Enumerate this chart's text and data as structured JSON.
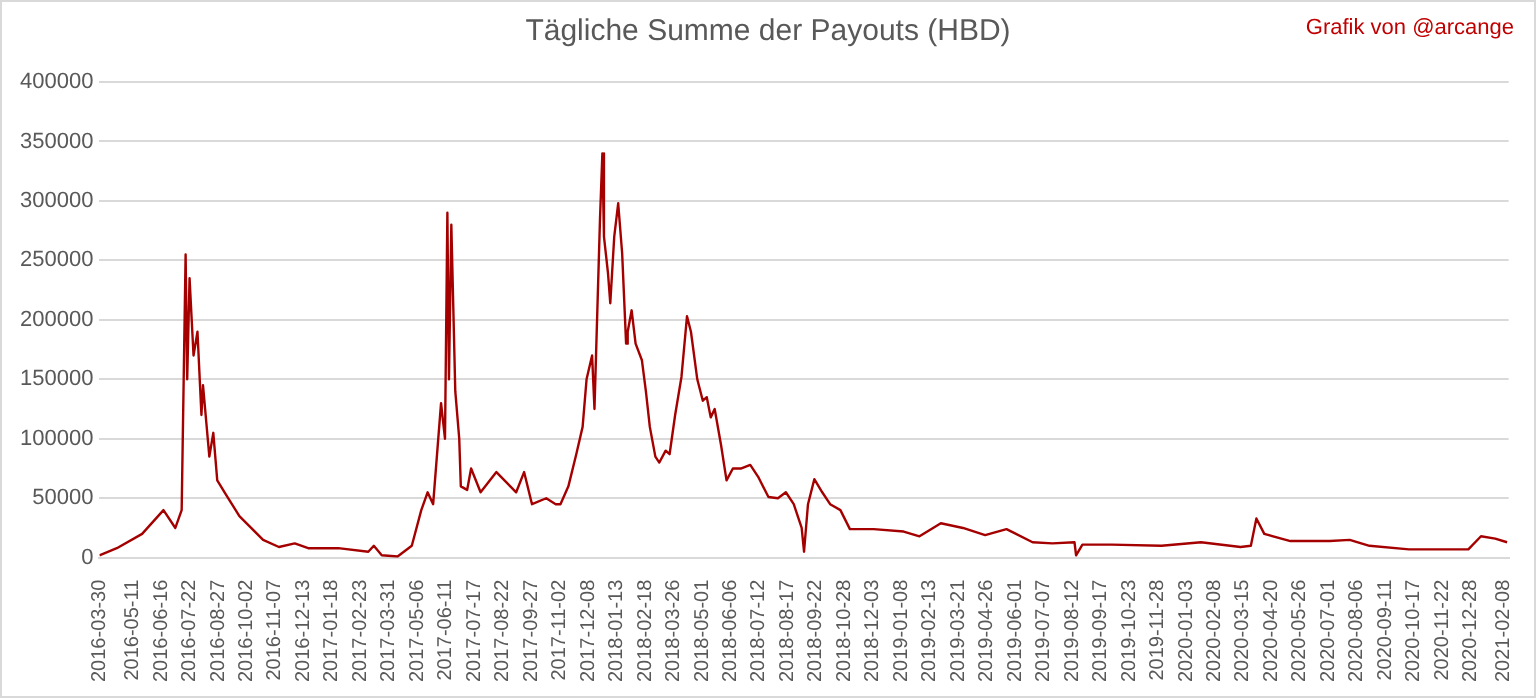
{
  "chart_data": {
    "type": "line",
    "title": "Tägliche Summe der Payouts (HBD)",
    "annotations": [
      "Grafik von @arcange"
    ],
    "x": [
      "2016-03-30",
      "2016-04-21",
      "2016-05-23",
      "2016-06-19",
      "2016-07-04",
      "2016-07-12",
      "2016-07-17",
      "2016-07-19",
      "2016-07-22",
      "2016-07-27",
      "2016-08-01",
      "2016-08-06",
      "2016-08-08",
      "2016-08-16",
      "2016-08-21",
      "2016-08-26",
      "2016-09-07",
      "2016-09-23",
      "2016-10-23",
      "2016-11-12",
      "2016-12-02",
      "2016-12-19",
      "2017-01-26",
      "2017-03-05",
      "2017-03-12",
      "2017-03-22",
      "2017-04-11",
      "2017-04-29",
      "2017-05-11",
      "2017-05-19",
      "2017-05-26",
      "2017-06-05",
      "2017-06-10",
      "2017-06-13",
      "2017-06-15",
      "2017-06-18",
      "2017-06-23",
      "2017-06-28",
      "2017-06-30",
      "2017-07-08",
      "2017-07-13",
      "2017-07-25",
      "2017-08-14",
      "2017-09-08",
      "2017-09-18",
      "2017-09-28",
      "2017-10-16",
      "2017-10-28",
      "2017-11-03",
      "2017-11-13",
      "2017-11-23",
      "2017-12-01",
      "2017-12-06",
      "2017-12-13",
      "2017-12-16",
      "2017-12-23",
      "2017-12-26",
      "2017-12-28",
      "2018-01-02",
      "2018-01-05",
      "2018-01-10",
      "2018-01-15",
      "2018-01-20",
      "2018-01-25",
      "2018-01-27",
      "2018-02-01",
      "2018-02-06",
      "2018-02-14",
      "2018-02-19",
      "2018-02-24",
      "2018-03-03",
      "2018-03-08",
      "2018-03-16",
      "2018-03-21",
      "2018-03-28",
      "2018-04-05",
      "2018-04-12",
      "2018-04-17",
      "2018-04-25",
      "2018-05-02",
      "2018-05-07",
      "2018-05-12",
      "2018-05-17",
      "2018-05-25",
      "2018-06-01",
      "2018-06-09",
      "2018-06-19",
      "2018-07-01",
      "2018-07-11",
      "2018-07-24",
      "2018-08-05",
      "2018-08-15",
      "2018-08-25",
      "2018-09-04",
      "2018-09-07",
      "2018-09-12",
      "2018-09-20",
      "2018-09-30",
      "2018-10-10",
      "2018-10-23",
      "2018-11-04",
      "2018-12-04",
      "2019-01-11",
      "2019-01-31",
      "2019-02-27",
      "2019-03-27",
      "2019-04-24",
      "2019-05-21",
      "2019-06-23",
      "2019-07-18",
      "2019-08-15",
      "2019-08-17",
      "2019-08-25",
      "2019-10-01",
      "2019-12-03",
      "2020-01-22",
      "2020-03-12",
      "2020-03-25",
      "2020-04-01",
      "2020-04-11",
      "2020-05-14",
      "2020-07-03",
      "2020-07-28",
      "2020-08-22",
      "2020-10-11",
      "2020-12-25",
      "2021-01-10",
      "2021-01-28",
      "2021-02-12"
    ],
    "series": [
      {
        "color": "#a50000",
        "values": [
          2000,
          8000,
          20000,
          40000,
          25000,
          40000,
          255000,
          150000,
          235000,
          170000,
          190000,
          120000,
          145000,
          85000,
          105000,
          65000,
          52000,
          35000,
          15000,
          9000,
          12000,
          8000,
          8000,
          5000,
          10000,
          2000,
          1000,
          10000,
          40000,
          55000,
          45000,
          130000,
          100000,
          290000,
          150000,
          280000,
          140000,
          100000,
          60000,
          57000,
          75000,
          55000,
          72000,
          55000,
          72000,
          45000,
          50000,
          45000,
          45000,
          60000,
          87000,
          110000,
          150000,
          170000,
          125000,
          285000,
          340000,
          270000,
          240000,
          214000,
          270000,
          298000,
          256000,
          180000,
          190000,
          208000,
          180000,
          166000,
          140000,
          110000,
          85000,
          80000,
          90000,
          87000,
          120000,
          152000,
          203000,
          190000,
          150000,
          132000,
          135000,
          118000,
          125000,
          95000,
          65000,
          75000,
          75000,
          78000,
          68000,
          51000,
          50000,
          55000,
          45000,
          25000,
          5000,
          45000,
          66000,
          55000,
          45000,
          40000,
          24000,
          24000,
          22000,
          18000,
          29000,
          25000,
          19000,
          24000,
          13000,
          12000,
          13000,
          2000,
          11000,
          11000,
          10000,
          13000,
          9000,
          10000,
          33000,
          20000,
          14000,
          14000,
          15000,
          10000,
          7000,
          7000,
          18000,
          16000,
          13000
        ]
      }
    ],
    "xlim": [
      "2016-03-30",
      "2021-02-14"
    ],
    "xticks": [
      "2016-03-30",
      "2016-05-11",
      "2016-06-16",
      "2016-07-22",
      "2016-08-27",
      "2016-10-02",
      "2016-11-07",
      "2016-12-13",
      "2017-01-18",
      "2017-02-23",
      "2017-03-31",
      "2017-05-06",
      "2017-06-11",
      "2017-07-17",
      "2017-08-22",
      "2017-09-27",
      "2017-11-02",
      "2017-12-08",
      "2018-01-13",
      "2018-02-18",
      "2018-03-26",
      "2018-05-01",
      "2018-06-06",
      "2018-07-12",
      "2018-08-17",
      "2018-09-22",
      "2018-10-28",
      "2018-12-03",
      "2019-01-08",
      "2019-02-13",
      "2019-03-21",
      "2019-04-26",
      "2019-06-01",
      "2019-07-07",
      "2019-08-12",
      "2019-09-17",
      "2019-10-23",
      "2019-11-28",
      "2020-01-03",
      "2020-02-08",
      "2020-03-15",
      "2020-04-20",
      "2020-05-26",
      "2020-07-01",
      "2020-08-06",
      "2020-09-11",
      "2020-10-17",
      "2020-11-22",
      "2020-12-28",
      "2021-02-08"
    ],
    "ylim": [
      0,
      400000
    ],
    "yticks": [
      0,
      50000,
      100000,
      150000,
      200000,
      250000,
      300000,
      350000,
      400000
    ],
    "grid": "y",
    "legend": false,
    "marker": "none",
    "line_style": "solid"
  }
}
